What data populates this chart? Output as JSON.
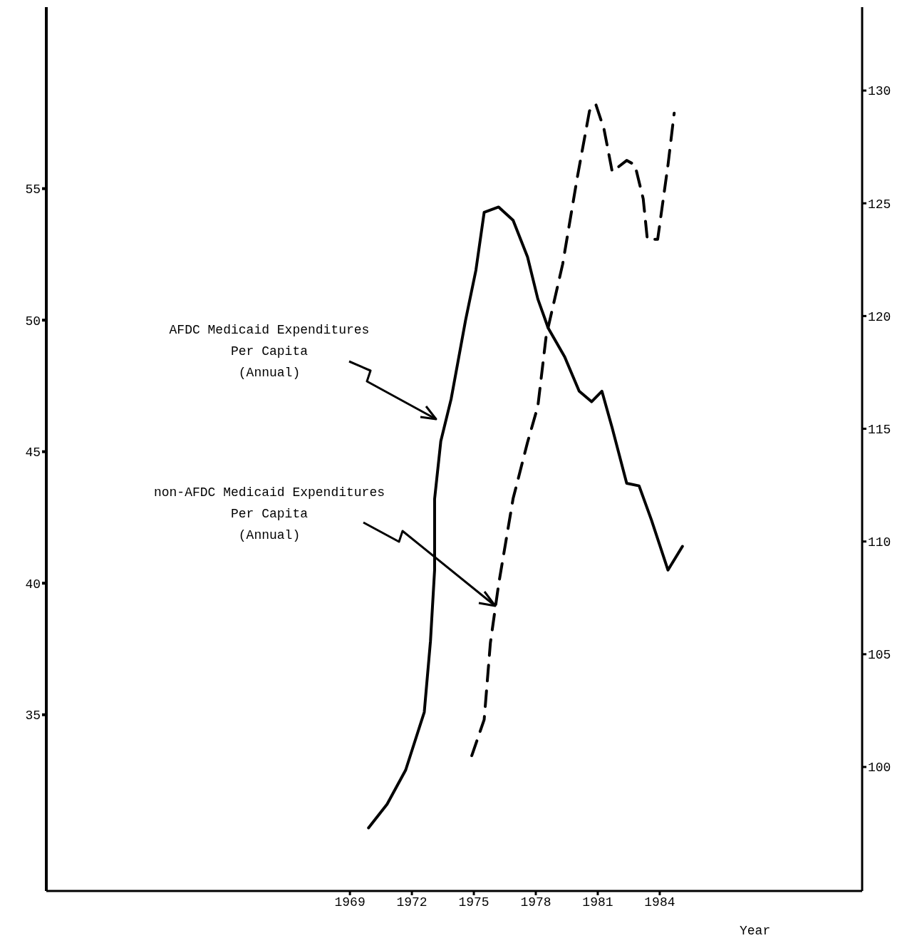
{
  "chart_data": {
    "type": "line",
    "xlabel": "Year",
    "xlim": [
      1954.3,
      1993.8
    ],
    "xticks": [
      1969,
      1972,
      1975,
      1978,
      1981,
      1984
    ],
    "ylim": [
      28.3,
      61.9
    ],
    "yticks": [
      35,
      40,
      45,
      50,
      55
    ],
    "y2lim": [
      94.5,
      133.7
    ],
    "y2ticks": [
      100,
      105,
      110,
      115,
      120,
      125,
      130
    ],
    "marker": "none",
    "series": [
      {
        "name": "AFDC Medicaid Expenditures\nPer Capita\n(Annual)",
        "color": "#000000",
        "line_style": "solid",
        "x": [
          1969.9,
          1970.8,
          1971.7,
          1972.6,
          1972.9,
          1973.1,
          1973.1,
          1973.4,
          1973.9,
          1974.6,
          1975.1,
          1975.5,
          1976.2,
          1976.9,
          1977.6,
          1978.1,
          1978.6,
          1979.4,
          1980.1,
          1980.7,
          1981.2,
          1981.7,
          1982.4,
          1983.0,
          1983.6,
          1984.4,
          1985.1
        ],
        "values": [
          30.7,
          31.6,
          32.9,
          35.1,
          37.8,
          40.5,
          43.2,
          45.4,
          47.0,
          50.0,
          51.9,
          54.1,
          54.3,
          53.8,
          52.4,
          50.8,
          49.7,
          48.6,
          47.3,
          46.9,
          47.3,
          45.9,
          43.8,
          43.7,
          42.4,
          40.5,
          41.4
        ]
      },
      {
        "name": "non-AFDC Medicaid Expenditures\nPer Capita\n(Annual)",
        "color": "#000000",
        "line_style": "dashed",
        "axis": "y2",
        "x": [
          1974.9,
          1975.5,
          1975.8,
          1976.2,
          1976.9,
          1977.6,
          1978.1,
          1978.5,
          1979.3,
          1980.0,
          1980.6,
          1980.9,
          1981.3,
          1981.7,
          1982.4,
          1982.8,
          1983.2,
          1983.4,
          1983.9,
          1984.4,
          1984.7
        ],
        "values": [
          100.5,
          102.1,
          105.5,
          108.1,
          111.9,
          114.4,
          116.0,
          119.1,
          122.3,
          126.1,
          129.1,
          129.4,
          128.3,
          126.4,
          126.9,
          126.7,
          125.2,
          123.4,
          123.4,
          126.7,
          129.0
        ]
      }
    ]
  }
}
